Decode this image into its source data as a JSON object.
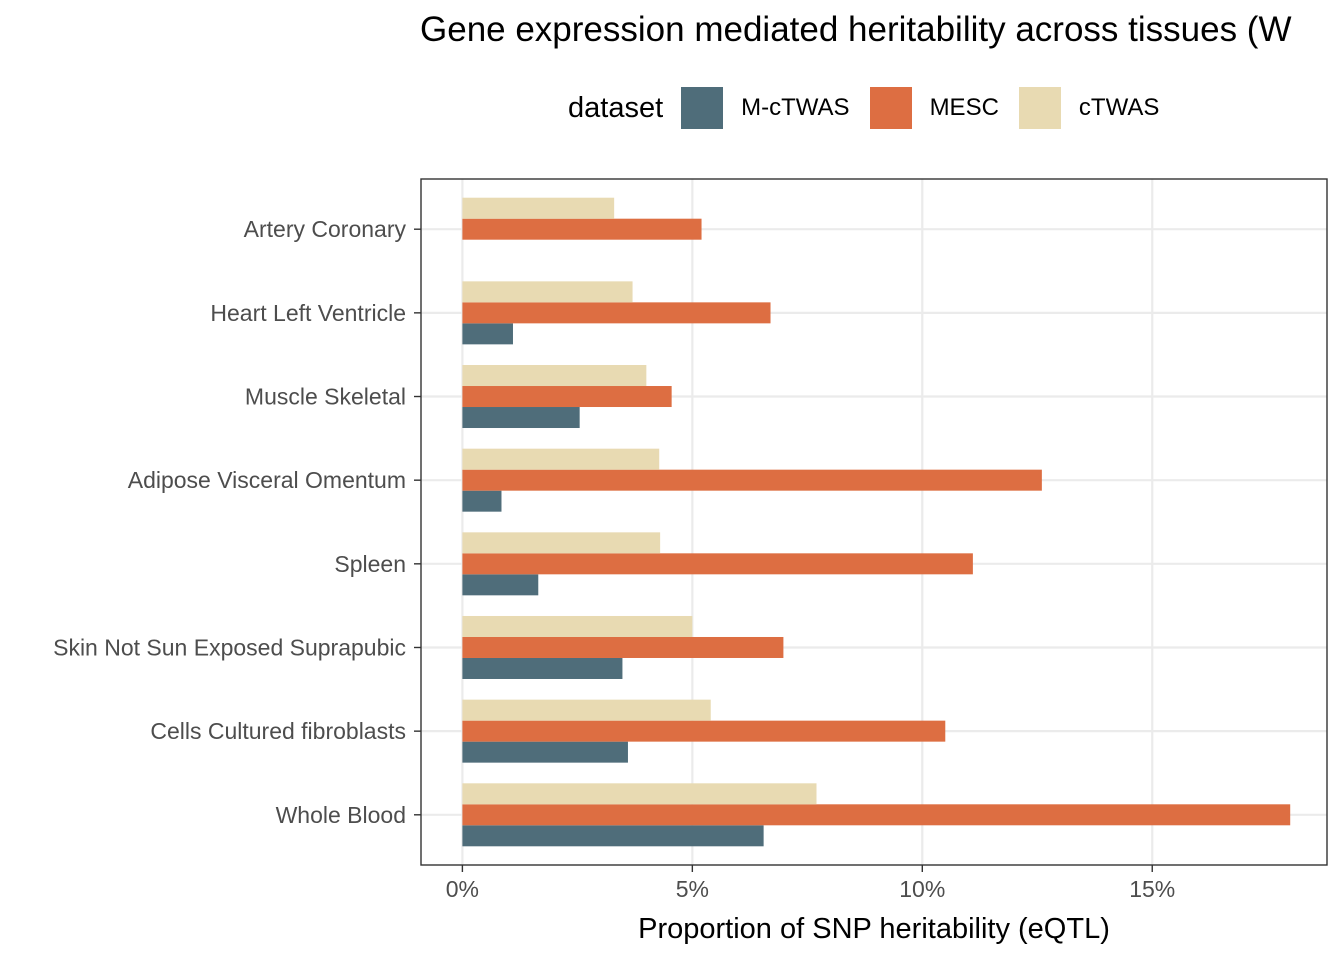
{
  "chart_data": {
    "type": "bar",
    "orientation": "horizontal",
    "title": "Gene expression mediated heritability across tissues (W",
    "xlabel": "Proportion of SNP heritability (eQTL)",
    "ylabel": "",
    "legend_title": "dataset",
    "legend_position": "top",
    "grid": true,
    "xlim": [
      -0.009,
      0.188
    ],
    "x_ticks": [
      0,
      0.05,
      0.1,
      0.15
    ],
    "x_tick_labels": [
      "0%",
      "5%",
      "10%",
      "15%"
    ],
    "categories": [
      "Artery Coronary",
      "Heart Left Ventricle",
      "Muscle Skeletal",
      "Adipose Visceral Omentum",
      "Spleen",
      "Skin Not Sun Exposed Suprapubic",
      "Cells Cultured fibroblasts",
      "Whole Blood"
    ],
    "series": [
      {
        "name": "M-cTWAS",
        "color": "#4f6d7a",
        "values": [
          0.0,
          0.011,
          0.0255,
          0.0085,
          0.0165,
          0.0348,
          0.036,
          0.0655
        ]
      },
      {
        "name": "MESC",
        "color": "#dd6e42",
        "values": [
          0.052,
          0.067,
          0.0455,
          0.126,
          0.111,
          0.0698,
          0.105,
          0.18
        ]
      },
      {
        "name": "cTWAS",
        "color": "#e8dab2",
        "values": [
          0.033,
          0.037,
          0.04,
          0.0428,
          0.043,
          0.05,
          0.054,
          0.077
        ]
      }
    ]
  }
}
